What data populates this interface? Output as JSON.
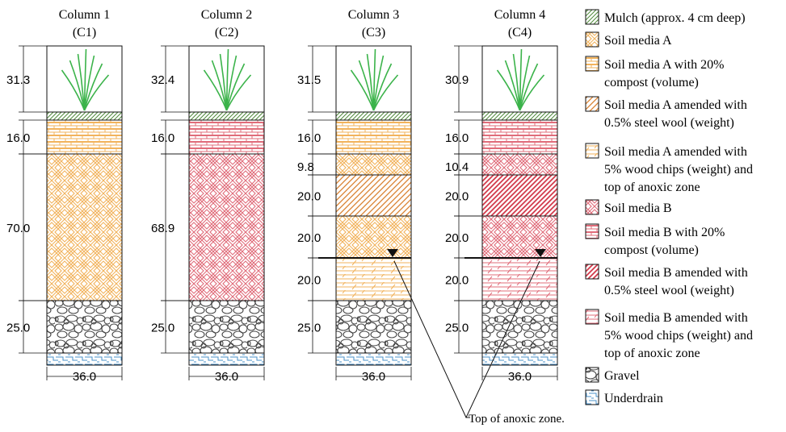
{
  "columns": [
    {
      "title": "Column 1",
      "subtitle": "(C1)",
      "width_label": "36.0",
      "layers": [
        {
          "thickness": "31.3",
          "material": "plant"
        },
        {
          "thickness": "",
          "material": "mulch"
        },
        {
          "thickness": "16.0",
          "material": "soilA_compost"
        },
        {
          "thickness": "70.0",
          "material": "soilA"
        },
        {
          "thickness": "25.0",
          "material": "gravel"
        },
        {
          "thickness": "",
          "material": "underdrain"
        }
      ]
    },
    {
      "title": "Column 2",
      "subtitle": "(C2)",
      "width_label": "36.0",
      "layers": [
        {
          "thickness": "32.4",
          "material": "plant"
        },
        {
          "thickness": "",
          "material": "mulch"
        },
        {
          "thickness": "16.0",
          "material": "soilB_compost"
        },
        {
          "thickness": "68.9",
          "material": "soilB"
        },
        {
          "thickness": "25.0",
          "material": "gravel"
        },
        {
          "thickness": "",
          "material": "underdrain"
        }
      ]
    },
    {
      "title": "Column 3",
      "subtitle": "(C3)",
      "width_label": "36.0",
      "layers": [
        {
          "thickness": "31.5",
          "material": "plant"
        },
        {
          "thickness": "",
          "material": "mulch"
        },
        {
          "thickness": "16.0",
          "material": "soilA_compost"
        },
        {
          "thickness": "9.8",
          "material": "soilA"
        },
        {
          "thickness": "20.0",
          "material": "soilA_steel"
        },
        {
          "thickness": "20.0",
          "material": "soilA"
        },
        {
          "thickness": "20.0",
          "material": "soilA_wood"
        },
        {
          "thickness": "25.0",
          "material": "gravel"
        },
        {
          "thickness": "",
          "material": "underdrain"
        }
      ]
    },
    {
      "title": "Column 4",
      "subtitle": "(C4)",
      "width_label": "36.0",
      "layers": [
        {
          "thickness": "30.9",
          "material": "plant"
        },
        {
          "thickness": "",
          "material": "mulch"
        },
        {
          "thickness": "16.0",
          "material": "soilB_compost"
        },
        {
          "thickness": "10.4",
          "material": "soilB"
        },
        {
          "thickness": "20.0",
          "material": "soilB_steel"
        },
        {
          "thickness": "20.0",
          "material": "soilB"
        },
        {
          "thickness": "20.0",
          "material": "soilB_wood"
        },
        {
          "thickness": "25.0",
          "material": "gravel"
        },
        {
          "thickness": "",
          "material": "underdrain"
        }
      ]
    }
  ],
  "legend": [
    {
      "material": "mulch",
      "lines": [
        "Mulch (approx. 4 cm deep)"
      ]
    },
    {
      "material": "soilA",
      "lines": [
        "Soil media A"
      ]
    },
    {
      "material": "soilA_compost",
      "lines": [
        "Soil media A with 20%",
        "compost (volume)"
      ]
    },
    {
      "material": "soilA_steel",
      "lines": [
        "Soil media A amended with",
        "0.5% steel wool (weight)"
      ]
    },
    {
      "material": "soilA_wood",
      "lines": [
        "Soil media A amended with",
        "5% wood chips (weight) and",
        "top of anoxic zone"
      ]
    },
    {
      "material": "soilB",
      "lines": [
        "Soil media B"
      ]
    },
    {
      "material": "soilB_compost",
      "lines": [
        "Soil media B with 20%",
        "compost (volume)"
      ]
    },
    {
      "material": "soilB_steel",
      "lines": [
        "Soil media B amended with",
        "0.5% steel wool (weight)"
      ]
    },
    {
      "material": "soilB_wood",
      "lines": [
        "Soil media B amended with",
        "5% wood chips (weight) and",
        "top of anoxic zone"
      ]
    },
    {
      "material": "gravel",
      "lines": [
        "Gravel"
      ]
    },
    {
      "material": "underdrain",
      "lines": [
        "Underdrain"
      ]
    }
  ],
  "annotation": {
    "text": "Top of anoxic zone."
  },
  "colors": {
    "mulch": "#4f8a3a",
    "soilA": "#f2b35c",
    "soilA_steel": "#d9812f",
    "soilB": "#e06c7a",
    "soilB_steel": "#d23a4b",
    "plant": "#3bb34a",
    "gravel": "#444444",
    "underdrain": "#4a90c8",
    "line": "#111111"
  }
}
